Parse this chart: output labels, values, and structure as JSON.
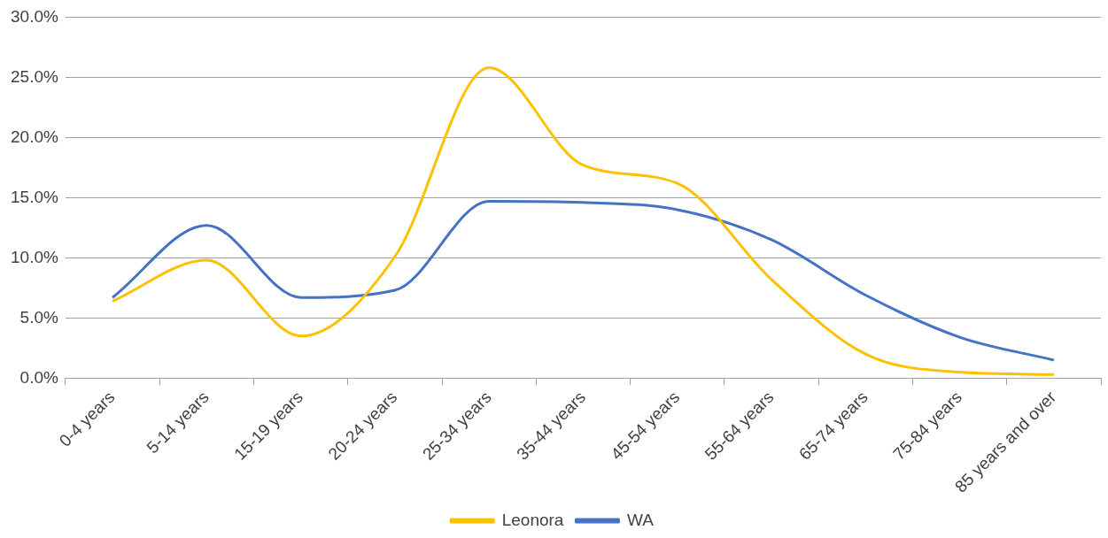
{
  "chart_data": {
    "type": "line",
    "categories": [
      "0-4 years",
      "5-14 years",
      "15-19 years",
      "20-24 years",
      "25-34 years",
      "35-44 years",
      "45-54 years",
      "55-64 years",
      "65-74 years",
      "75-84 years",
      "85 years and over"
    ],
    "series": [
      {
        "name": "Leonora",
        "color": "#ffc000",
        "values": [
          6.4,
          9.8,
          3.5,
          10.1,
          25.8,
          17.7,
          16.2,
          8.2,
          2.0,
          0.5,
          0.3
        ]
      },
      {
        "name": "WA",
        "color": "#4472c4",
        "values": [
          6.7,
          12.7,
          6.7,
          7.3,
          14.7,
          14.6,
          14.0,
          11.5,
          6.9,
          3.4,
          1.5
        ]
      }
    ],
    "ylim": [
      0,
      30
    ],
    "yticks": [
      {
        "value": 0,
        "label": "0.0%"
      },
      {
        "value": 5,
        "label": "5.0%"
      },
      {
        "value": 10,
        "label": "10.0%"
      },
      {
        "value": 15,
        "label": "15.0%"
      },
      {
        "value": 20,
        "label": "20.0%"
      },
      {
        "value": 25,
        "label": "25.0%"
      },
      {
        "value": 30,
        "label": "30.0%"
      }
    ],
    "grid": "y",
    "legend": "bottom",
    "marker": "none",
    "line_style": "solid"
  }
}
